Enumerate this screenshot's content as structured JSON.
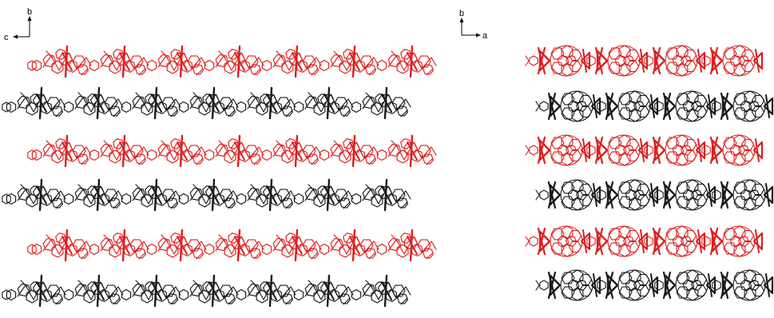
{
  "figure": {
    "left_panel": {
      "axes": {
        "vertical": "b",
        "horizontal": "c"
      },
      "rows": [
        {
          "color": "red"
        },
        {
          "color": "black"
        },
        {
          "color": "red"
        },
        {
          "color": "black"
        },
        {
          "color": "red"
        },
        {
          "color": "black"
        }
      ],
      "units_per_row": 7
    },
    "right_panel": {
      "axes": {
        "vertical": "b",
        "horizontal": "a"
      },
      "rows": [
        {
          "color": "red"
        },
        {
          "color": "black"
        },
        {
          "color": "red"
        },
        {
          "color": "black"
        },
        {
          "color": "red"
        },
        {
          "color": "black"
        }
      ],
      "units_per_row": 4
    },
    "colors": {
      "red": "#dd1f1f",
      "black": "#1a1a1a"
    }
  }
}
